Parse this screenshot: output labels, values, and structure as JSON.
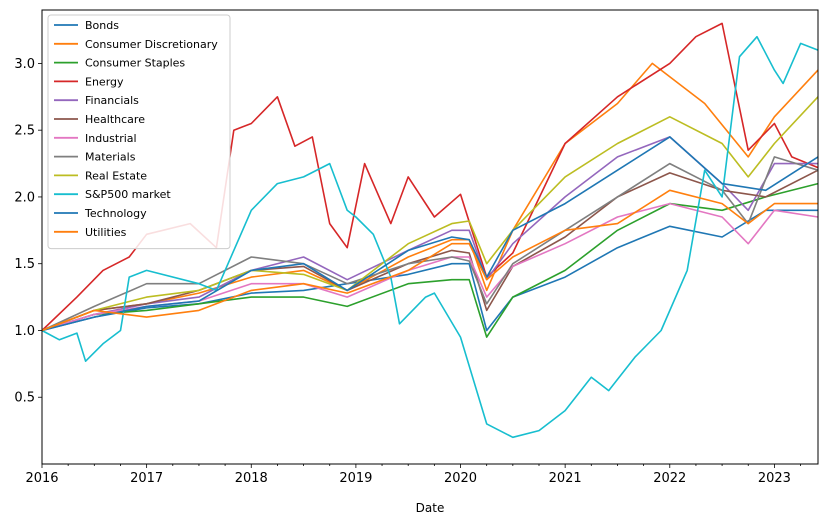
{
  "chart_data": {
    "type": "line",
    "title": "",
    "xlabel": "Date",
    "ylabel": "",
    "x_start": "2016-01",
    "x_end": "2023-06",
    "x_ticks": [
      "2016",
      "2017",
      "2018",
      "2019",
      "2020",
      "2021",
      "2022",
      "2023"
    ],
    "ylim": [
      0.0,
      3.4
    ],
    "y_ticks": [
      "0.5",
      "1.0",
      "1.5",
      "2.0",
      "2.5",
      "3.0"
    ],
    "grid": false,
    "legend_position": "top-left",
    "colors": [
      "#1f77b4",
      "#ff7f0e",
      "#2ca02c",
      "#d62728",
      "#9467bd",
      "#8c564b",
      "#e377c2",
      "#7f7f7f",
      "#bcbd22",
      "#17becf",
      "#1f77b4",
      "#ff7f0e"
    ],
    "series": [
      {
        "name": "Bonds",
        "points": [
          [
            "2016-01",
            1.0
          ],
          [
            "2016-07",
            1.1
          ],
          [
            "2017-01",
            1.17
          ],
          [
            "2017-07",
            1.2
          ],
          [
            "2018-01",
            1.28
          ],
          [
            "2018-07",
            1.3
          ],
          [
            "2018-12",
            1.35
          ],
          [
            "2019-07",
            1.42
          ],
          [
            "2019-12",
            1.5
          ],
          [
            "2020-02",
            1.5
          ],
          [
            "2020-04",
            1.0
          ],
          [
            "2020-07",
            1.25
          ],
          [
            "2021-01",
            1.4
          ],
          [
            "2021-07",
            1.62
          ],
          [
            "2022-01",
            1.78
          ],
          [
            "2022-07",
            1.7
          ],
          [
            "2022-12",
            1.9
          ],
          [
            "2023-06",
            1.9
          ]
        ]
      },
      {
        "name": "Consumer Discretionary",
        "points": [
          [
            "2016-01",
            1.0
          ],
          [
            "2016-07",
            1.15
          ],
          [
            "2017-01",
            1.2
          ],
          [
            "2017-07",
            1.28
          ],
          [
            "2018-01",
            1.4
          ],
          [
            "2018-07",
            1.45
          ],
          [
            "2018-12",
            1.3
          ],
          [
            "2019-07",
            1.55
          ],
          [
            "2019-12",
            1.68
          ],
          [
            "2020-02",
            1.68
          ],
          [
            "2020-04",
            1.3
          ],
          [
            "2020-07",
            1.75
          ],
          [
            "2021-01",
            2.4
          ],
          [
            "2021-07",
            2.7
          ],
          [
            "2021-11",
            3.0
          ],
          [
            "2022-05",
            2.7
          ],
          [
            "2022-10",
            2.3
          ],
          [
            "2023-01",
            2.6
          ],
          [
            "2023-06",
            2.95
          ]
        ]
      },
      {
        "name": "Consumer Staples",
        "points": [
          [
            "2016-01",
            1.0
          ],
          [
            "2016-07",
            1.12
          ],
          [
            "2017-01",
            1.15
          ],
          [
            "2017-07",
            1.2
          ],
          [
            "2018-01",
            1.25
          ],
          [
            "2018-07",
            1.25
          ],
          [
            "2018-12",
            1.18
          ],
          [
            "2019-07",
            1.35
          ],
          [
            "2019-12",
            1.38
          ],
          [
            "2020-02",
            1.38
          ],
          [
            "2020-04",
            0.95
          ],
          [
            "2020-07",
            1.25
          ],
          [
            "2021-01",
            1.45
          ],
          [
            "2021-07",
            1.75
          ],
          [
            "2022-01",
            1.95
          ],
          [
            "2022-07",
            1.9
          ],
          [
            "2022-12",
            2.0
          ],
          [
            "2023-06",
            2.1
          ]
        ]
      },
      {
        "name": "Energy",
        "points": [
          [
            "2016-01",
            1.0
          ],
          [
            "2016-05",
            1.25
          ],
          [
            "2016-08",
            1.45
          ],
          [
            "2016-11",
            1.55
          ],
          [
            "2017-01",
            1.72
          ],
          [
            "2017-06",
            1.8
          ],
          [
            "2017-09",
            1.62
          ],
          [
            "2017-11",
            2.5
          ],
          [
            "2018-01",
            2.55
          ],
          [
            "2018-04",
            2.75
          ],
          [
            "2018-06",
            2.38
          ],
          [
            "2018-08",
            2.45
          ],
          [
            "2018-10",
            1.8
          ],
          [
            "2018-12",
            1.62
          ],
          [
            "2019-02",
            2.25
          ],
          [
            "2019-05",
            1.8
          ],
          [
            "2019-07",
            2.15
          ],
          [
            "2019-10",
            1.85
          ],
          [
            "2020-01",
            2.02
          ],
          [
            "2020-04",
            1.4
          ],
          [
            "2020-07",
            1.58
          ],
          [
            "2021-01",
            2.4
          ],
          [
            "2021-07",
            2.75
          ],
          [
            "2022-01",
            3.0
          ],
          [
            "2022-04",
            3.2
          ],
          [
            "2022-07",
            3.3
          ],
          [
            "2022-10",
            2.35
          ],
          [
            "2023-01",
            2.55
          ],
          [
            "2023-03",
            2.3
          ],
          [
            "2023-06",
            2.22
          ]
        ]
      },
      {
        "name": "Financials",
        "points": [
          [
            "2016-01",
            1.0
          ],
          [
            "2016-07",
            1.12
          ],
          [
            "2017-01",
            1.2
          ],
          [
            "2017-07",
            1.25
          ],
          [
            "2018-01",
            1.45
          ],
          [
            "2018-07",
            1.55
          ],
          [
            "2018-12",
            1.38
          ],
          [
            "2019-07",
            1.6
          ],
          [
            "2019-12",
            1.75
          ],
          [
            "2020-02",
            1.75
          ],
          [
            "2020-04",
            1.38
          ],
          [
            "2020-07",
            1.65
          ],
          [
            "2021-01",
            2.0
          ],
          [
            "2021-07",
            2.3
          ],
          [
            "2022-01",
            2.45
          ],
          [
            "2022-07",
            2.1
          ],
          [
            "2022-10",
            1.9
          ],
          [
            "2023-01",
            2.25
          ],
          [
            "2023-06",
            2.25
          ]
        ]
      },
      {
        "name": "Healthcare",
        "points": [
          [
            "2016-01",
            1.0
          ],
          [
            "2016-07",
            1.15
          ],
          [
            "2017-01",
            1.2
          ],
          [
            "2017-07",
            1.3
          ],
          [
            "2018-01",
            1.45
          ],
          [
            "2018-07",
            1.48
          ],
          [
            "2018-12",
            1.3
          ],
          [
            "2019-07",
            1.5
          ],
          [
            "2019-12",
            1.6
          ],
          [
            "2020-02",
            1.58
          ],
          [
            "2020-04",
            1.15
          ],
          [
            "2020-07",
            1.48
          ],
          [
            "2021-01",
            1.7
          ],
          [
            "2021-07",
            2.0
          ],
          [
            "2022-01",
            2.18
          ],
          [
            "2022-07",
            2.05
          ],
          [
            "2022-12",
            2.0
          ],
          [
            "2023-06",
            2.2
          ]
        ]
      },
      {
        "name": "Industrial",
        "points": [
          [
            "2016-01",
            1.0
          ],
          [
            "2016-07",
            1.12
          ],
          [
            "2017-01",
            1.18
          ],
          [
            "2017-07",
            1.22
          ],
          [
            "2018-01",
            1.35
          ],
          [
            "2018-07",
            1.35
          ],
          [
            "2018-12",
            1.25
          ],
          [
            "2019-07",
            1.45
          ],
          [
            "2019-12",
            1.55
          ],
          [
            "2020-02",
            1.55
          ],
          [
            "2020-04",
            1.25
          ],
          [
            "2020-07",
            1.48
          ],
          [
            "2021-01",
            1.65
          ],
          [
            "2021-07",
            1.85
          ],
          [
            "2022-01",
            1.95
          ],
          [
            "2022-07",
            1.85
          ],
          [
            "2022-10",
            1.65
          ],
          [
            "2023-01",
            1.9
          ],
          [
            "2023-06",
            1.85
          ]
        ]
      },
      {
        "name": "Materials",
        "points": [
          [
            "2016-01",
            1.0
          ],
          [
            "2016-07",
            1.18
          ],
          [
            "2017-01",
            1.35
          ],
          [
            "2017-07",
            1.35
          ],
          [
            "2018-01",
            1.55
          ],
          [
            "2018-07",
            1.5
          ],
          [
            "2018-12",
            1.35
          ],
          [
            "2019-07",
            1.5
          ],
          [
            "2019-12",
            1.55
          ],
          [
            "2020-02",
            1.52
          ],
          [
            "2020-04",
            1.2
          ],
          [
            "2020-07",
            1.5
          ],
          [
            "2021-01",
            1.75
          ],
          [
            "2021-07",
            2.0
          ],
          [
            "2022-01",
            2.25
          ],
          [
            "2022-07",
            2.05
          ],
          [
            "2022-10",
            1.8
          ],
          [
            "2023-01",
            2.3
          ],
          [
            "2023-06",
            2.2
          ]
        ]
      },
      {
        "name": "Real Estate",
        "points": [
          [
            "2016-01",
            1.0
          ],
          [
            "2016-07",
            1.15
          ],
          [
            "2017-01",
            1.25
          ],
          [
            "2017-07",
            1.3
          ],
          [
            "2018-01",
            1.45
          ],
          [
            "2018-07",
            1.42
          ],
          [
            "2018-12",
            1.3
          ],
          [
            "2019-07",
            1.65
          ],
          [
            "2019-12",
            1.8
          ],
          [
            "2020-02",
            1.82
          ],
          [
            "2020-04",
            1.5
          ],
          [
            "2020-07",
            1.75
          ],
          [
            "2021-01",
            2.15
          ],
          [
            "2021-07",
            2.4
          ],
          [
            "2022-01",
            2.6
          ],
          [
            "2022-07",
            2.4
          ],
          [
            "2022-10",
            2.15
          ],
          [
            "2023-01",
            2.4
          ],
          [
            "2023-06",
            2.75
          ]
        ]
      },
      {
        "name": "S&P500 market",
        "points": [
          [
            "2016-01",
            1.0
          ],
          [
            "2016-03",
            0.93
          ],
          [
            "2016-05",
            0.98
          ],
          [
            "2016-06",
            0.77
          ],
          [
            "2016-08",
            0.9
          ],
          [
            "2016-10",
            1.0
          ],
          [
            "2016-11",
            1.4
          ],
          [
            "2017-01",
            1.45
          ],
          [
            "2017-07",
            1.35
          ],
          [
            "2017-09",
            1.3
          ],
          [
            "2018-01",
            1.9
          ],
          [
            "2018-04",
            2.1
          ],
          [
            "2018-07",
            2.15
          ],
          [
            "2018-10",
            2.25
          ],
          [
            "2018-12",
            1.9
          ],
          [
            "2019-01",
            1.85
          ],
          [
            "2019-03",
            1.72
          ],
          [
            "2019-05",
            1.4
          ],
          [
            "2019-06",
            1.05
          ],
          [
            "2019-09",
            1.25
          ],
          [
            "2019-10",
            1.28
          ],
          [
            "2020-01",
            0.95
          ],
          [
            "2020-04",
            0.3
          ],
          [
            "2020-07",
            0.2
          ],
          [
            "2020-10",
            0.25
          ],
          [
            "2021-01",
            0.4
          ],
          [
            "2021-04",
            0.65
          ],
          [
            "2021-06",
            0.55
          ],
          [
            "2021-09",
            0.8
          ],
          [
            "2021-12",
            1.0
          ],
          [
            "2022-03",
            1.45
          ],
          [
            "2022-05",
            2.2
          ],
          [
            "2022-07",
            2.0
          ],
          [
            "2022-09",
            3.05
          ],
          [
            "2022-11",
            3.2
          ],
          [
            "2023-01",
            2.95
          ],
          [
            "2023-02",
            2.85
          ],
          [
            "2023-04",
            3.15
          ],
          [
            "2023-06",
            3.1
          ]
        ]
      },
      {
        "name": "Technology",
        "points": [
          [
            "2016-01",
            1.0
          ],
          [
            "2016-07",
            1.1
          ],
          [
            "2017-01",
            1.18
          ],
          [
            "2017-07",
            1.22
          ],
          [
            "2018-01",
            1.45
          ],
          [
            "2018-07",
            1.5
          ],
          [
            "2018-12",
            1.3
          ],
          [
            "2019-07",
            1.6
          ],
          [
            "2019-12",
            1.7
          ],
          [
            "2020-02",
            1.68
          ],
          [
            "2020-04",
            1.4
          ],
          [
            "2020-07",
            1.75
          ],
          [
            "2021-01",
            1.95
          ],
          [
            "2021-07",
            2.2
          ],
          [
            "2022-01",
            2.45
          ],
          [
            "2022-07",
            2.1
          ],
          [
            "2022-12",
            2.05
          ],
          [
            "2023-06",
            2.3
          ]
        ]
      },
      {
        "name": "Utilities",
        "points": [
          [
            "2016-01",
            1.0
          ],
          [
            "2016-07",
            1.15
          ],
          [
            "2017-01",
            1.1
          ],
          [
            "2017-07",
            1.15
          ],
          [
            "2018-01",
            1.3
          ],
          [
            "2018-07",
            1.35
          ],
          [
            "2018-12",
            1.28
          ],
          [
            "2019-07",
            1.45
          ],
          [
            "2019-12",
            1.65
          ],
          [
            "2020-02",
            1.65
          ],
          [
            "2020-04",
            1.38
          ],
          [
            "2020-07",
            1.55
          ],
          [
            "2021-01",
            1.75
          ],
          [
            "2021-07",
            1.8
          ],
          [
            "2022-01",
            2.05
          ],
          [
            "2022-07",
            1.95
          ],
          [
            "2022-10",
            1.8
          ],
          [
            "2023-01",
            1.95
          ],
          [
            "2023-06",
            1.95
          ]
        ]
      }
    ]
  }
}
